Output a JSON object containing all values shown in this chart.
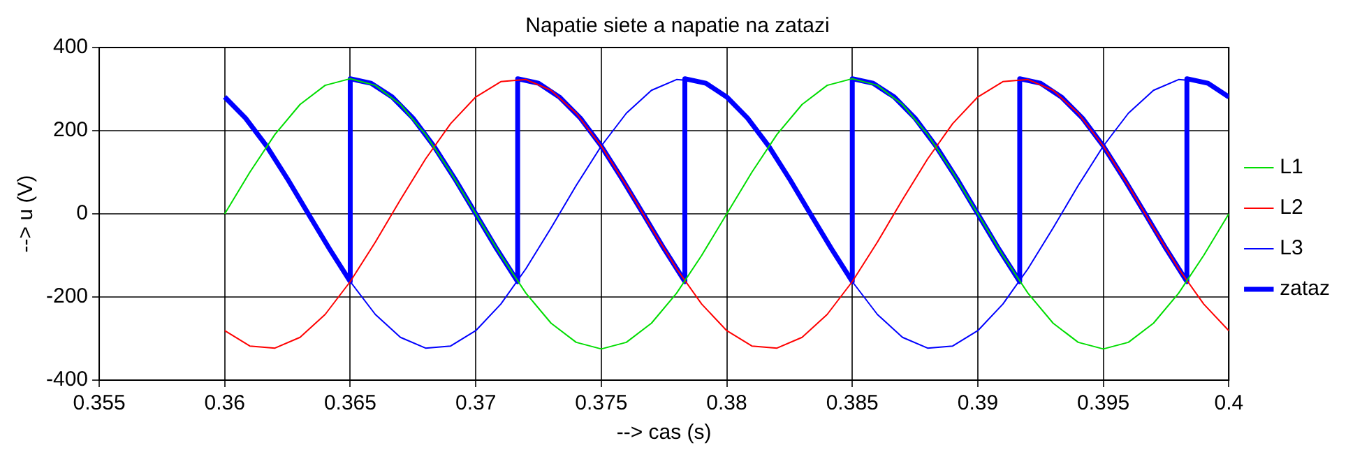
{
  "chart_data": {
    "type": "line",
    "title": "Napatie siete a napatie na zatazi",
    "xlabel": "--> cas (s)",
    "ylabel": "--> u (V)",
    "x": [
      0.36,
      0.361,
      0.362,
      0.363,
      0.364,
      0.365,
      0.366,
      0.367,
      0.368,
      0.369,
      0.37,
      0.371,
      0.372,
      0.373,
      0.374,
      0.375,
      0.376,
      0.377,
      0.378,
      0.379,
      0.38,
      0.381,
      0.382,
      0.383,
      0.384,
      0.385,
      0.386,
      0.387,
      0.388,
      0.389,
      0.39,
      0.391,
      0.392,
      0.393,
      0.394,
      0.395,
      0.396,
      0.397,
      0.398,
      0.399,
      0.4
    ],
    "series": [
      {
        "name": "L1",
        "color": "#00dd00",
        "values": [
          0,
          100,
          191,
          263,
          309,
          325,
          309,
          263,
          191,
          100,
          0,
          -100,
          -191,
          -263,
          -309,
          -325,
          -309,
          -263,
          -191,
          -100,
          0,
          100,
          191,
          263,
          309,
          325,
          309,
          263,
          191,
          100,
          0,
          -100,
          -191,
          -263,
          -309,
          -325,
          -309,
          -263,
          -191,
          -100,
          0
        ]
      },
      {
        "name": "L2",
        "color": "#ff0000",
        "values": [
          -281,
          -318,
          -323,
          -297,
          -242,
          -163,
          -68,
          34,
          132,
          217,
          281,
          318,
          323,
          297,
          242,
          163,
          68,
          -34,
          -132,
          -217,
          -281,
          -318,
          -323,
          -297,
          -242,
          -163,
          -68,
          34,
          132,
          217,
          281,
          318,
          323,
          297,
          242,
          163,
          68,
          -34,
          -132,
          -217,
          -281
        ]
      },
      {
        "name": "L3",
        "color": "#0000ff",
        "values": [
          281,
          217,
          132,
          34,
          -68,
          -163,
          -242,
          -297,
          -323,
          -318,
          -281,
          -217,
          -132,
          -34,
          68,
          163,
          242,
          297,
          323,
          318,
          281,
          217,
          132,
          34,
          -68,
          -163,
          -242,
          -297,
          -323,
          -318,
          -281,
          -217,
          -132,
          -34,
          68,
          163,
          242,
          297,
          323,
          318,
          281
        ]
      },
      {
        "name": "zataz",
        "color": "#0000ff",
        "x": [
          0.36,
          0.36083,
          0.36167,
          0.3625,
          0.36333,
          0.36417,
          0.365,
          0.365,
          0.36583,
          0.36667,
          0.3675,
          0.36833,
          0.36917,
          0.37,
          0.37083,
          0.37167,
          0.37167,
          0.3725,
          0.37333,
          0.37417,
          0.375,
          0.37583,
          0.37667,
          0.3775,
          0.37833,
          0.37833,
          0.37917,
          0.38,
          0.38083,
          0.38167,
          0.3825,
          0.38333,
          0.38417,
          0.385,
          0.385,
          0.38583,
          0.38667,
          0.3875,
          0.38833,
          0.38917,
          0.39,
          0.39083,
          0.39167,
          0.39167,
          0.3925,
          0.39333,
          0.39417,
          0.395,
          0.39583,
          0.39667,
          0.3975,
          0.39833,
          0.39833,
          0.39917,
          0.4
        ],
        "values": [
          281,
          230,
          163,
          84,
          0,
          -84,
          -163,
          325,
          314,
          281,
          230,
          163,
          84,
          0,
          -84,
          -163,
          325,
          314,
          281,
          230,
          163,
          84,
          0,
          -84,
          -163,
          325,
          314,
          281,
          230,
          163,
          84,
          0,
          -84,
          -163,
          325,
          314,
          281,
          230,
          163,
          84,
          0,
          -84,
          -163,
          325,
          314,
          281,
          230,
          163,
          84,
          0,
          -84,
          -163,
          325,
          314,
          281
        ]
      }
    ],
    "xlim": [
      0.355,
      0.4
    ],
    "xticks": [
      0.355,
      0.36,
      0.365,
      0.37,
      0.375,
      0.38,
      0.385,
      0.39,
      0.395,
      0.4
    ],
    "ylim": [
      -400,
      400
    ],
    "yticks": [
      -400,
      -200,
      0,
      200,
      400
    ],
    "grid": true,
    "legend": "right",
    "marker": "none",
    "line_style": "solid"
  }
}
